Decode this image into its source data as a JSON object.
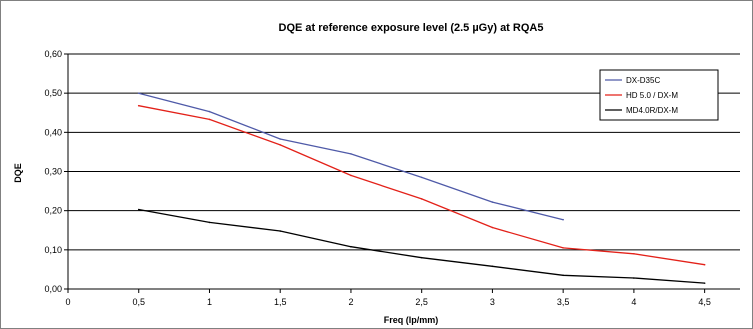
{
  "chart_data": {
    "type": "line",
    "title": "DQE at reference exposure level (2.5 µGy) at RQA5",
    "xlabel": "Freq (lp/mm)",
    "ylabel": "DQE",
    "xlim": [
      0,
      4.75
    ],
    "ylim": [
      0,
      0.6
    ],
    "x_ticks": [
      "0",
      "0,5",
      "1",
      "1,5",
      "2",
      "2,5",
      "3",
      "3,5",
      "4",
      "4,5"
    ],
    "y_ticks": [
      "0,00",
      "0,10",
      "0,20",
      "0,30",
      "0,40",
      "0,50",
      "0,60"
    ],
    "grid": "horizontal",
    "legend_position": "top-right",
    "series": [
      {
        "name": "DX-D35C",
        "color": "#4f5aa8",
        "x": [
          0.5,
          1.0,
          1.5,
          2.0,
          2.5,
          3.0,
          3.5
        ],
        "y": [
          0.5,
          0.453,
          0.383,
          0.345,
          0.285,
          0.222,
          0.177
        ]
      },
      {
        "name": "HD 5.0 / DX-M",
        "color": "#e32119",
        "x": [
          0.5,
          1.0,
          1.5,
          2.0,
          2.5,
          3.0,
          3.5,
          4.0,
          4.5
        ],
        "y": [
          0.468,
          0.433,
          0.368,
          0.29,
          0.23,
          0.157,
          0.105,
          0.09,
          0.062
        ]
      },
      {
        "name": "MD4.0R/DX-M",
        "color": "#000000",
        "x": [
          0.5,
          1.0,
          1.5,
          2.0,
          2.5,
          3.0,
          3.5,
          4.0,
          4.5
        ],
        "y": [
          0.203,
          0.17,
          0.148,
          0.108,
          0.08,
          0.058,
          0.035,
          0.028,
          0.015
        ]
      }
    ]
  }
}
